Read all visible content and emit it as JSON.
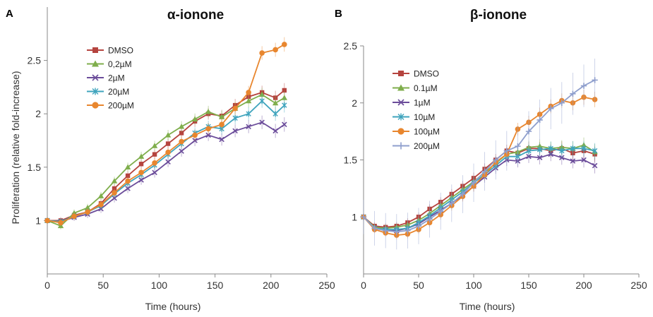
{
  "figure": {
    "shared_ylabel": "Proliferation (relative fold-increase)"
  },
  "chart_data": [
    {
      "type": "line",
      "panel_letter": "A",
      "title": "α-ionone",
      "xlabel": "Time (hours)",
      "ylabel": "Proliferation (relative fold-increase)",
      "xlim": [
        0,
        250
      ],
      "ylim": [
        0.5,
        3.0
      ],
      "x_ticks": [
        "0",
        "50",
        "100",
        "150",
        "200",
        "250"
      ],
      "y_ticks": [
        "1",
        "1.5",
        "2",
        "2.5"
      ],
      "y_tick_values": [
        1,
        1.5,
        2,
        2.5
      ],
      "grid": false,
      "legend_position": "top-left",
      "error_bars": true,
      "x": [
        0,
        12,
        24,
        36,
        48,
        60,
        72,
        84,
        96,
        108,
        120,
        132,
        144,
        156,
        168,
        180,
        192,
        204,
        212
      ],
      "series": [
        {
          "name": "DMSO",
          "color": "#b5443f",
          "marker": "square",
          "values": [
            1.0,
            1.0,
            1.05,
            1.08,
            1.16,
            1.3,
            1.42,
            1.53,
            1.62,
            1.72,
            1.82,
            1.93,
            2.0,
            1.98,
            2.08,
            2.16,
            2.2,
            2.15,
            2.22
          ]
        },
        {
          "name": "0,2µM",
          "color": "#7fae4c",
          "marker": "triangle",
          "values": [
            1.0,
            0.95,
            1.07,
            1.12,
            1.23,
            1.37,
            1.5,
            1.6,
            1.7,
            1.8,
            1.88,
            1.95,
            2.02,
            1.97,
            2.05,
            2.12,
            2.18,
            2.1,
            2.15
          ]
        },
        {
          "name": "2µM",
          "color": "#6b4c9a",
          "marker": "x",
          "values": [
            1.0,
            0.99,
            1.03,
            1.06,
            1.11,
            1.21,
            1.3,
            1.38,
            1.45,
            1.55,
            1.65,
            1.75,
            1.8,
            1.76,
            1.84,
            1.88,
            1.92,
            1.84,
            1.9
          ]
        },
        {
          "name": "20µM",
          "color": "#3fa4bd",
          "marker": "star",
          "values": [
            1.0,
            0.99,
            1.04,
            1.08,
            1.14,
            1.25,
            1.35,
            1.43,
            1.52,
            1.62,
            1.72,
            1.82,
            1.88,
            1.86,
            1.96,
            2.0,
            2.12,
            2.0,
            2.08
          ]
        },
        {
          "name": "200µM",
          "color": "#e8862e",
          "marker": "circle",
          "values": [
            1.0,
            0.98,
            1.04,
            1.08,
            1.15,
            1.26,
            1.37,
            1.45,
            1.54,
            1.64,
            1.74,
            1.8,
            1.86,
            1.9,
            2.05,
            2.2,
            2.57,
            2.6,
            2.65
          ]
        }
      ]
    },
    {
      "type": "line",
      "panel_letter": "B",
      "title": "β-ionone",
      "xlabel": "Time (hours)",
      "ylabel": "",
      "xlim": [
        0,
        250
      ],
      "ylim": [
        0.5,
        2.5
      ],
      "x_ticks": [
        "0",
        "50",
        "100",
        "150",
        "200",
        "250"
      ],
      "y_ticks": [
        "1",
        "1.5",
        "2",
        "2.5"
      ],
      "y_tick_values": [
        1,
        1.5,
        2,
        2.5
      ],
      "grid": false,
      "legend_position": "top-left",
      "error_bars": true,
      "x": [
        0,
        10,
        20,
        30,
        40,
        50,
        60,
        70,
        80,
        90,
        100,
        110,
        120,
        130,
        140,
        150,
        160,
        170,
        180,
        190,
        200,
        210
      ],
      "series": [
        {
          "name": "DMSO",
          "color": "#b5443f",
          "marker": "square",
          "values": [
            1.0,
            0.92,
            0.91,
            0.92,
            0.95,
            1.0,
            1.07,
            1.13,
            1.2,
            1.27,
            1.34,
            1.42,
            1.5,
            1.58,
            1.56,
            1.6,
            1.6,
            1.58,
            1.6,
            1.56,
            1.58,
            1.55
          ]
        },
        {
          "name": "0.1µM",
          "color": "#7fae4c",
          "marker": "triangle",
          "values": [
            1.0,
            0.91,
            0.9,
            0.91,
            0.93,
            0.97,
            1.03,
            1.1,
            1.17,
            1.24,
            1.31,
            1.39,
            1.47,
            1.55,
            1.57,
            1.61,
            1.62,
            1.6,
            1.61,
            1.6,
            1.63,
            1.57
          ]
        },
        {
          "name": "1µM",
          "color": "#6b4c9a",
          "marker": "x",
          "values": [
            1.0,
            0.9,
            0.88,
            0.88,
            0.9,
            0.94,
            1.0,
            1.06,
            1.12,
            1.19,
            1.27,
            1.35,
            1.43,
            1.5,
            1.49,
            1.53,
            1.52,
            1.55,
            1.52,
            1.49,
            1.5,
            1.45
          ]
        },
        {
          "name": "10µM",
          "color": "#3fa4bd",
          "marker": "star",
          "values": [
            1.0,
            0.9,
            0.89,
            0.89,
            0.9,
            0.95,
            1.01,
            1.08,
            1.15,
            1.22,
            1.3,
            1.37,
            1.45,
            1.53,
            1.53,
            1.58,
            1.59,
            1.6,
            1.58,
            1.6,
            1.6,
            1.58
          ]
        },
        {
          "name": "100µM",
          "color": "#e8862e",
          "marker": "circle",
          "values": [
            1.0,
            0.89,
            0.86,
            0.84,
            0.85,
            0.89,
            0.95,
            1.02,
            1.1,
            1.18,
            1.27,
            1.37,
            1.48,
            1.55,
            1.77,
            1.83,
            1.9,
            1.97,
            2.02,
            2.0,
            2.05,
            2.03
          ]
        },
        {
          "name": "200µM",
          "color": "#8f9fcd",
          "marker": "plus",
          "values": [
            1.0,
            0.9,
            0.88,
            0.87,
            0.88,
            0.92,
            0.98,
            1.05,
            1.12,
            1.2,
            1.3,
            1.4,
            1.5,
            1.58,
            1.62,
            1.75,
            1.85,
            1.95,
            2.0,
            2.08,
            2.15,
            2.2
          ]
        }
      ]
    }
  ]
}
